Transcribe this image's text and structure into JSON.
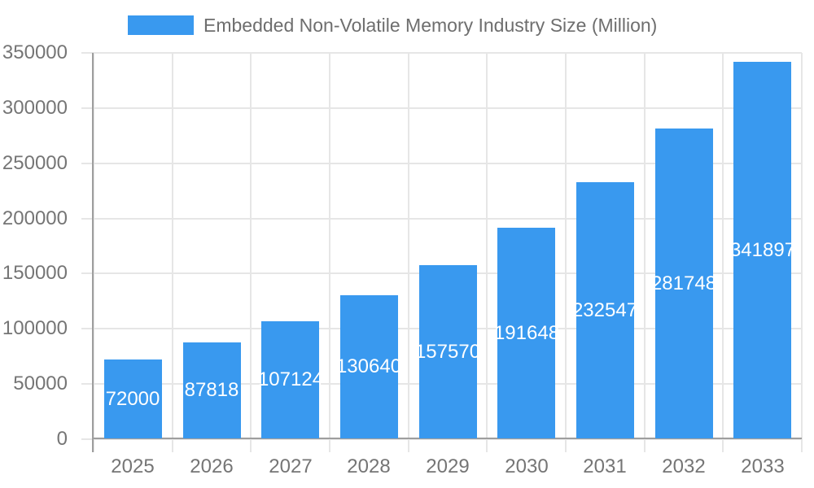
{
  "chart": {
    "legend": {
      "label": "Embedded Non-Volatile Memory Industry Size (Million)"
    }
  },
  "chart_data": {
    "type": "bar",
    "title": "Embedded Non-Volatile Memory Industry Size (Million)",
    "series_name": "Embedded Non-Volatile Memory Industry Size (Million)",
    "categories": [
      "2025",
      "2026",
      "2027",
      "2028",
      "2029",
      "2030",
      "2031",
      "2032",
      "2033"
    ],
    "values": [
      72000,
      87818,
      107124,
      130640,
      157570,
      191648,
      232547,
      281748,
      341897
    ],
    "xlabel": "",
    "ylabel": "",
    "ylim": [
      0,
      350000
    ],
    "yticks": [
      0,
      50000,
      100000,
      150000,
      200000,
      250000,
      300000,
      350000
    ],
    "grid": true,
    "legend_position": "top",
    "bar_value_labels": true,
    "colors": {
      "bar": "#3999EF",
      "grid_line": "#e6e6e6",
      "axis_line": "#9e9e9e",
      "axis_text": "#757575",
      "legend_text": "#6e6e6e",
      "bar_label_text": "#ffffff",
      "background": "#ffffff"
    }
  }
}
